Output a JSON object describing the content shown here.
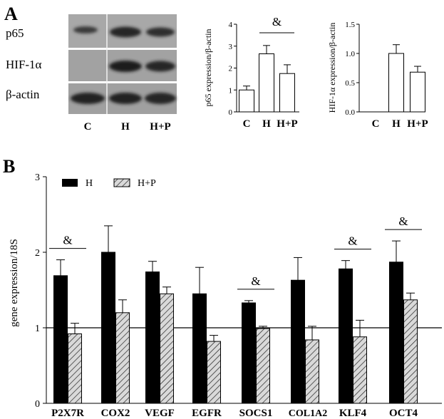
{
  "panelA": {
    "letter": "A",
    "blot": {
      "rows": [
        "p65",
        "HIF-1α",
        "β-actin"
      ],
      "lanes": [
        "C",
        "H",
        "H+P"
      ]
    }
  },
  "panelB": {
    "letter": "B"
  },
  "chart_data": [
    {
      "type": "bar",
      "ylabel": "p65 expression/β-actin",
      "categories": [
        "C",
        "H",
        "H+P"
      ],
      "values": [
        1.0,
        2.65,
        1.75
      ],
      "errors": [
        0.18,
        0.38,
        0.4
      ],
      "ylim": [
        0,
        4
      ],
      "yticks": [
        "0",
        "1",
        "2",
        "3",
        "4"
      ],
      "annotations": [
        {
          "text": "&",
          "between": [
            "H",
            "H+P"
          ]
        }
      ]
    },
    {
      "type": "bar",
      "ylabel": "HIF-1α expression/β-actin",
      "categories": [
        "C",
        "H",
        "H+P"
      ],
      "values": [
        0,
        1.0,
        0.68
      ],
      "errors": [
        0,
        0.15,
        0.1
      ],
      "ylim": [
        0,
        1.5
      ],
      "yticks": [
        "0.0",
        "0.5",
        "1.0",
        "1.5"
      ]
    },
    {
      "type": "bar",
      "ylabel": "gene expression/18S",
      "categories": [
        "P2X7R",
        "COX2",
        "VEGF",
        "EGFR",
        "SOCS1",
        "COL1A2",
        "KLF4",
        "OCT4"
      ],
      "series": [
        {
          "name": "H",
          "values": [
            1.69,
            2.0,
            1.74,
            1.45,
            1.33,
            1.63,
            1.78,
            1.87
          ],
          "errors": [
            0.21,
            0.35,
            0.14,
            0.35,
            0.03,
            0.3,
            0.11,
            0.28
          ],
          "pattern": "solid-black"
        },
        {
          "name": "H+P",
          "values": [
            0.92,
            1.2,
            1.45,
            0.82,
            0.99,
            0.84,
            0.88,
            1.37
          ],
          "errors": [
            0.14,
            0.17,
            0.09,
            0.08,
            0.03,
            0.18,
            0.22,
            0.09
          ],
          "pattern": "hatched"
        }
      ],
      "ylim": [
        0,
        3
      ],
      "yticks": [
        "0",
        "1",
        "2",
        "3"
      ],
      "reference_line": 1,
      "annotations": [
        {
          "text": "&",
          "category": "P2X7R"
        },
        {
          "text": "&",
          "category": "SOCS1"
        },
        {
          "text": "&",
          "category": "KLF4"
        },
        {
          "text": "&",
          "category": "OCT4"
        }
      ],
      "legend": "top-left"
    }
  ]
}
